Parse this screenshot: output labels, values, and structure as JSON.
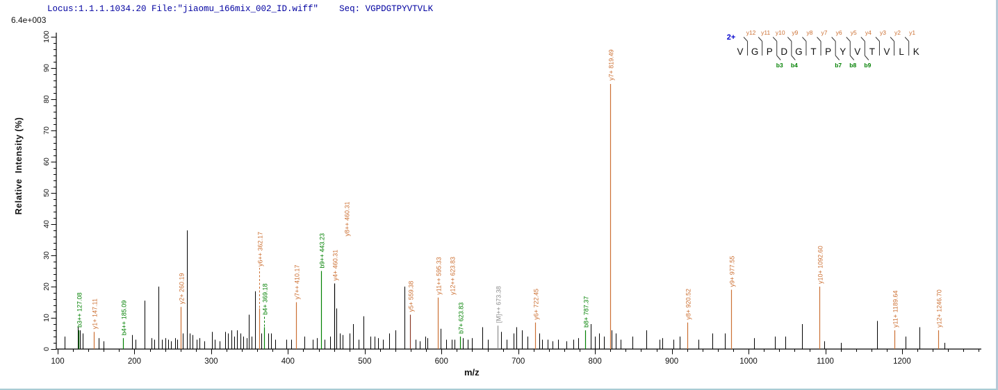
{
  "header": {
    "locus_file": "Locus:1.1.1.1034.20 File:\"jiaomu_166mix_002_ID.wiff\"",
    "seq": "Seq: VGPDGTPYVTVLK",
    "base_peak_intensity": "6.4e+003"
  },
  "axes": {
    "x_label": "m/z",
    "y_label": "Relative  Intensity (%)",
    "x_major_ticks": [
      100,
      200,
      300,
      400,
      500,
      600,
      700,
      800,
      900,
      1000,
      1100,
      1200
    ],
    "y_major_ticks": [
      0,
      10,
      20,
      30,
      40,
      50,
      60,
      70,
      80,
      90,
      100
    ],
    "x_range": [
      100,
      1300
    ],
    "y_range": [
      0,
      100
    ]
  },
  "sequence_panel": {
    "charge": "2+",
    "residues": [
      "V",
      "G",
      "P",
      "D",
      "G",
      "T",
      "P",
      "Y",
      "V",
      "T",
      "V",
      "L",
      "K"
    ],
    "y_ion_labels": [
      "y12",
      "y11",
      "y10",
      "y9",
      "y8",
      "y7",
      "y6",
      "y5",
      "y4",
      "y3",
      "y2",
      "y1"
    ],
    "b_ion_labels": [
      {
        "after_residue": 3,
        "label": "b3"
      },
      {
        "after_residue": 4,
        "label": "b4"
      },
      {
        "after_residue": 7,
        "label": "b7"
      },
      {
        "after_residue": 8,
        "label": "b8"
      },
      {
        "after_residue": 9,
        "label": "b9"
      }
    ]
  },
  "colors": {
    "y_ion": "#cc7033",
    "b_ion": "#008000",
    "precursor": "#8c8c8c",
    "peak": "#000000",
    "header_text": "#0000a0",
    "charge_text": "#0000cc",
    "axis": "#000000",
    "y5_line": "#8b3a26"
  },
  "chart_data": {
    "type": "bar",
    "title": "MS/MS fragment ion spectrum of peptide VGPDGTPYVTVLK (2+)",
    "xlabel": "m/z",
    "ylabel": "Relative Intensity (%)",
    "xlim": [
      100,
      1300
    ],
    "ylim": [
      0,
      100
    ],
    "base_peak_intensity": "6.4e+003",
    "labeled_peaks": [
      {
        "label": "b3++ 127.08",
        "mz": 127.08,
        "intensity": 6,
        "ion": "b"
      },
      {
        "label": "y1+ 147.11",
        "mz": 147.11,
        "intensity": 5.5,
        "ion": "y"
      },
      {
        "label": "b4++ 185.09",
        "mz": 185.09,
        "intensity": 3.5,
        "ion": "b"
      },
      {
        "label": "y2+ 260.19",
        "mz": 260.19,
        "intensity": 13.5,
        "ion": "y"
      },
      {
        "label": "y6++ 362.17",
        "mz": 362.17,
        "intensity": 13,
        "ion": "y",
        "leader_to": 26
      },
      {
        "label": "b4+ 369.18",
        "mz": 369.18,
        "intensity": 7,
        "ion": "b",
        "leader_to": 10.5
      },
      {
        "label": "y7++ 410.17",
        "mz": 410.17,
        "intensity": 15,
        "ion": "y"
      },
      {
        "label": "b9++ 443.23",
        "mz": 443.23,
        "intensity": 25,
        "ion": "b"
      },
      {
        "label": "y4+ 460.31",
        "mz": 460.31,
        "intensity": 21,
        "ion": "y",
        "line_color": "#000000"
      },
      {
        "label": "y8++ 460.31",
        "mz": 460.31,
        "intensity": 21,
        "ion": "y",
        "no_line": true,
        "raise": 64,
        "xshift": 17
      },
      {
        "label": "y5+ 559.38",
        "mz": 559.38,
        "intensity": 11,
        "ion": "y",
        "line_color": "#8b3a26"
      },
      {
        "label": "y11++ 595.33",
        "mz": 595.33,
        "intensity": 16.5,
        "ion": "y"
      },
      {
        "label": "b7+ 623.83",
        "mz": 623.83,
        "intensity": 4,
        "ion": "b"
      },
      {
        "label": "y12++ 623.83",
        "mz": 623.83,
        "intensity": 4,
        "ion": "y",
        "no_line": true,
        "raise": 56,
        "xshift": -12
      },
      {
        "label": "[M]++ 673.38",
        "mz": 673.38,
        "intensity": 7.5,
        "ion": "M"
      },
      {
        "label": "y6+ 722.45",
        "mz": 722.45,
        "intensity": 8.5,
        "ion": "y"
      },
      {
        "label": "b8+ 787.37",
        "mz": 787.37,
        "intensity": 6,
        "ion": "b"
      },
      {
        "label": "y7+ 819.49",
        "mz": 819.49,
        "intensity": 100,
        "ion": "y",
        "label_at_top": true
      },
      {
        "label": "y8+ 920.52",
        "mz": 920.52,
        "intensity": 8.5,
        "ion": "y"
      },
      {
        "label": "y9+ 977.55",
        "mz": 977.55,
        "intensity": 19,
        "ion": "y"
      },
      {
        "label": "y10+ 1092.60",
        "mz": 1092.6,
        "intensity": 20,
        "ion": "y"
      },
      {
        "label": "y11+ 1189.64",
        "mz": 1189.64,
        "intensity": 6,
        "ion": "y"
      },
      {
        "label": "y12+ 1246.70",
        "mz": 1246.7,
        "intensity": 6,
        "ion": "y"
      }
    ],
    "unlabeled_peaks": [
      [
        109,
        4
      ],
      [
        126,
        7
      ],
      [
        129,
        6
      ],
      [
        133,
        5
      ],
      [
        153,
        3.5
      ],
      [
        160,
        2.5
      ],
      [
        197,
        4.5
      ],
      [
        201,
        3
      ],
      [
        213,
        15.5
      ],
      [
        222,
        3.5
      ],
      [
        226,
        3
      ],
      [
        231,
        20
      ],
      [
        236,
        3
      ],
      [
        240,
        3.5
      ],
      [
        244,
        3
      ],
      [
        248,
        2.5
      ],
      [
        253,
        3.5
      ],
      [
        256,
        3
      ],
      [
        263,
        5
      ],
      [
        268,
        38
      ],
      [
        272,
        5
      ],
      [
        276,
        4.5
      ],
      [
        281,
        3
      ],
      [
        285,
        3.5
      ],
      [
        291,
        2.5
      ],
      [
        301,
        5.5
      ],
      [
        305,
        3
      ],
      [
        311,
        2.5
      ],
      [
        318,
        5.5
      ],
      [
        322,
        5
      ],
      [
        326,
        6
      ],
      [
        330,
        4
      ],
      [
        334,
        6
      ],
      [
        338,
        5
      ],
      [
        342,
        4
      ],
      [
        346,
        3.5
      ],
      [
        349,
        11
      ],
      [
        353,
        4
      ],
      [
        357,
        18.5
      ],
      [
        365,
        5
      ],
      [
        374,
        5
      ],
      [
        378,
        5
      ],
      [
        383,
        3
      ],
      [
        398,
        3
      ],
      [
        404,
        3
      ],
      [
        421,
        4
      ],
      [
        432,
        3
      ],
      [
        438,
        3.5
      ],
      [
        448,
        3
      ],
      [
        455,
        4
      ],
      [
        463.5,
        13
      ],
      [
        468,
        5
      ],
      [
        471,
        4.5
      ],
      [
        480,
        5
      ],
      [
        485,
        8
      ],
      [
        492,
        3
      ],
      [
        498,
        10.5
      ],
      [
        507,
        4
      ],
      [
        513,
        4
      ],
      [
        517,
        3.5
      ],
      [
        524,
        3
      ],
      [
        532,
        5
      ],
      [
        540,
        6
      ],
      [
        552,
        20
      ],
      [
        566,
        3
      ],
      [
        572,
        2.5
      ],
      [
        579,
        4
      ],
      [
        582,
        3.5
      ],
      [
        599,
        6.5
      ],
      [
        606,
        3
      ],
      [
        613,
        3
      ],
      [
        617,
        3
      ],
      [
        628,
        3.5
      ],
      [
        634,
        3
      ],
      [
        640,
        3.5
      ],
      [
        653,
        7
      ],
      [
        660,
        3
      ],
      [
        678,
        5.5
      ],
      [
        685,
        3
      ],
      [
        694,
        5
      ],
      [
        698,
        7
      ],
      [
        705,
        6
      ],
      [
        712,
        4
      ],
      [
        727,
        5
      ],
      [
        731,
        3
      ],
      [
        738,
        3
      ],
      [
        745,
        2.5
      ],
      [
        752,
        3
      ],
      [
        763,
        2.5
      ],
      [
        772,
        3
      ],
      [
        778,
        3.5
      ],
      [
        794,
        8
      ],
      [
        800,
        4
      ],
      [
        805,
        5
      ],
      [
        812,
        4
      ],
      [
        822,
        6
      ],
      [
        827,
        5
      ],
      [
        833,
        3
      ],
      [
        849,
        4
      ],
      [
        867,
        6
      ],
      [
        884,
        3
      ],
      [
        888,
        3.5
      ],
      [
        902,
        3
      ],
      [
        910,
        4
      ],
      [
        935,
        3
      ],
      [
        953,
        5
      ],
      [
        969,
        5
      ],
      [
        1007,
        3.5
      ],
      [
        1034,
        4
      ],
      [
        1048,
        4
      ],
      [
        1070,
        8
      ],
      [
        1099,
        2.5
      ],
      [
        1120,
        2
      ],
      [
        1167,
        9
      ],
      [
        1205,
        4
      ],
      [
        1223,
        7
      ],
      [
        1255,
        2
      ]
    ]
  }
}
